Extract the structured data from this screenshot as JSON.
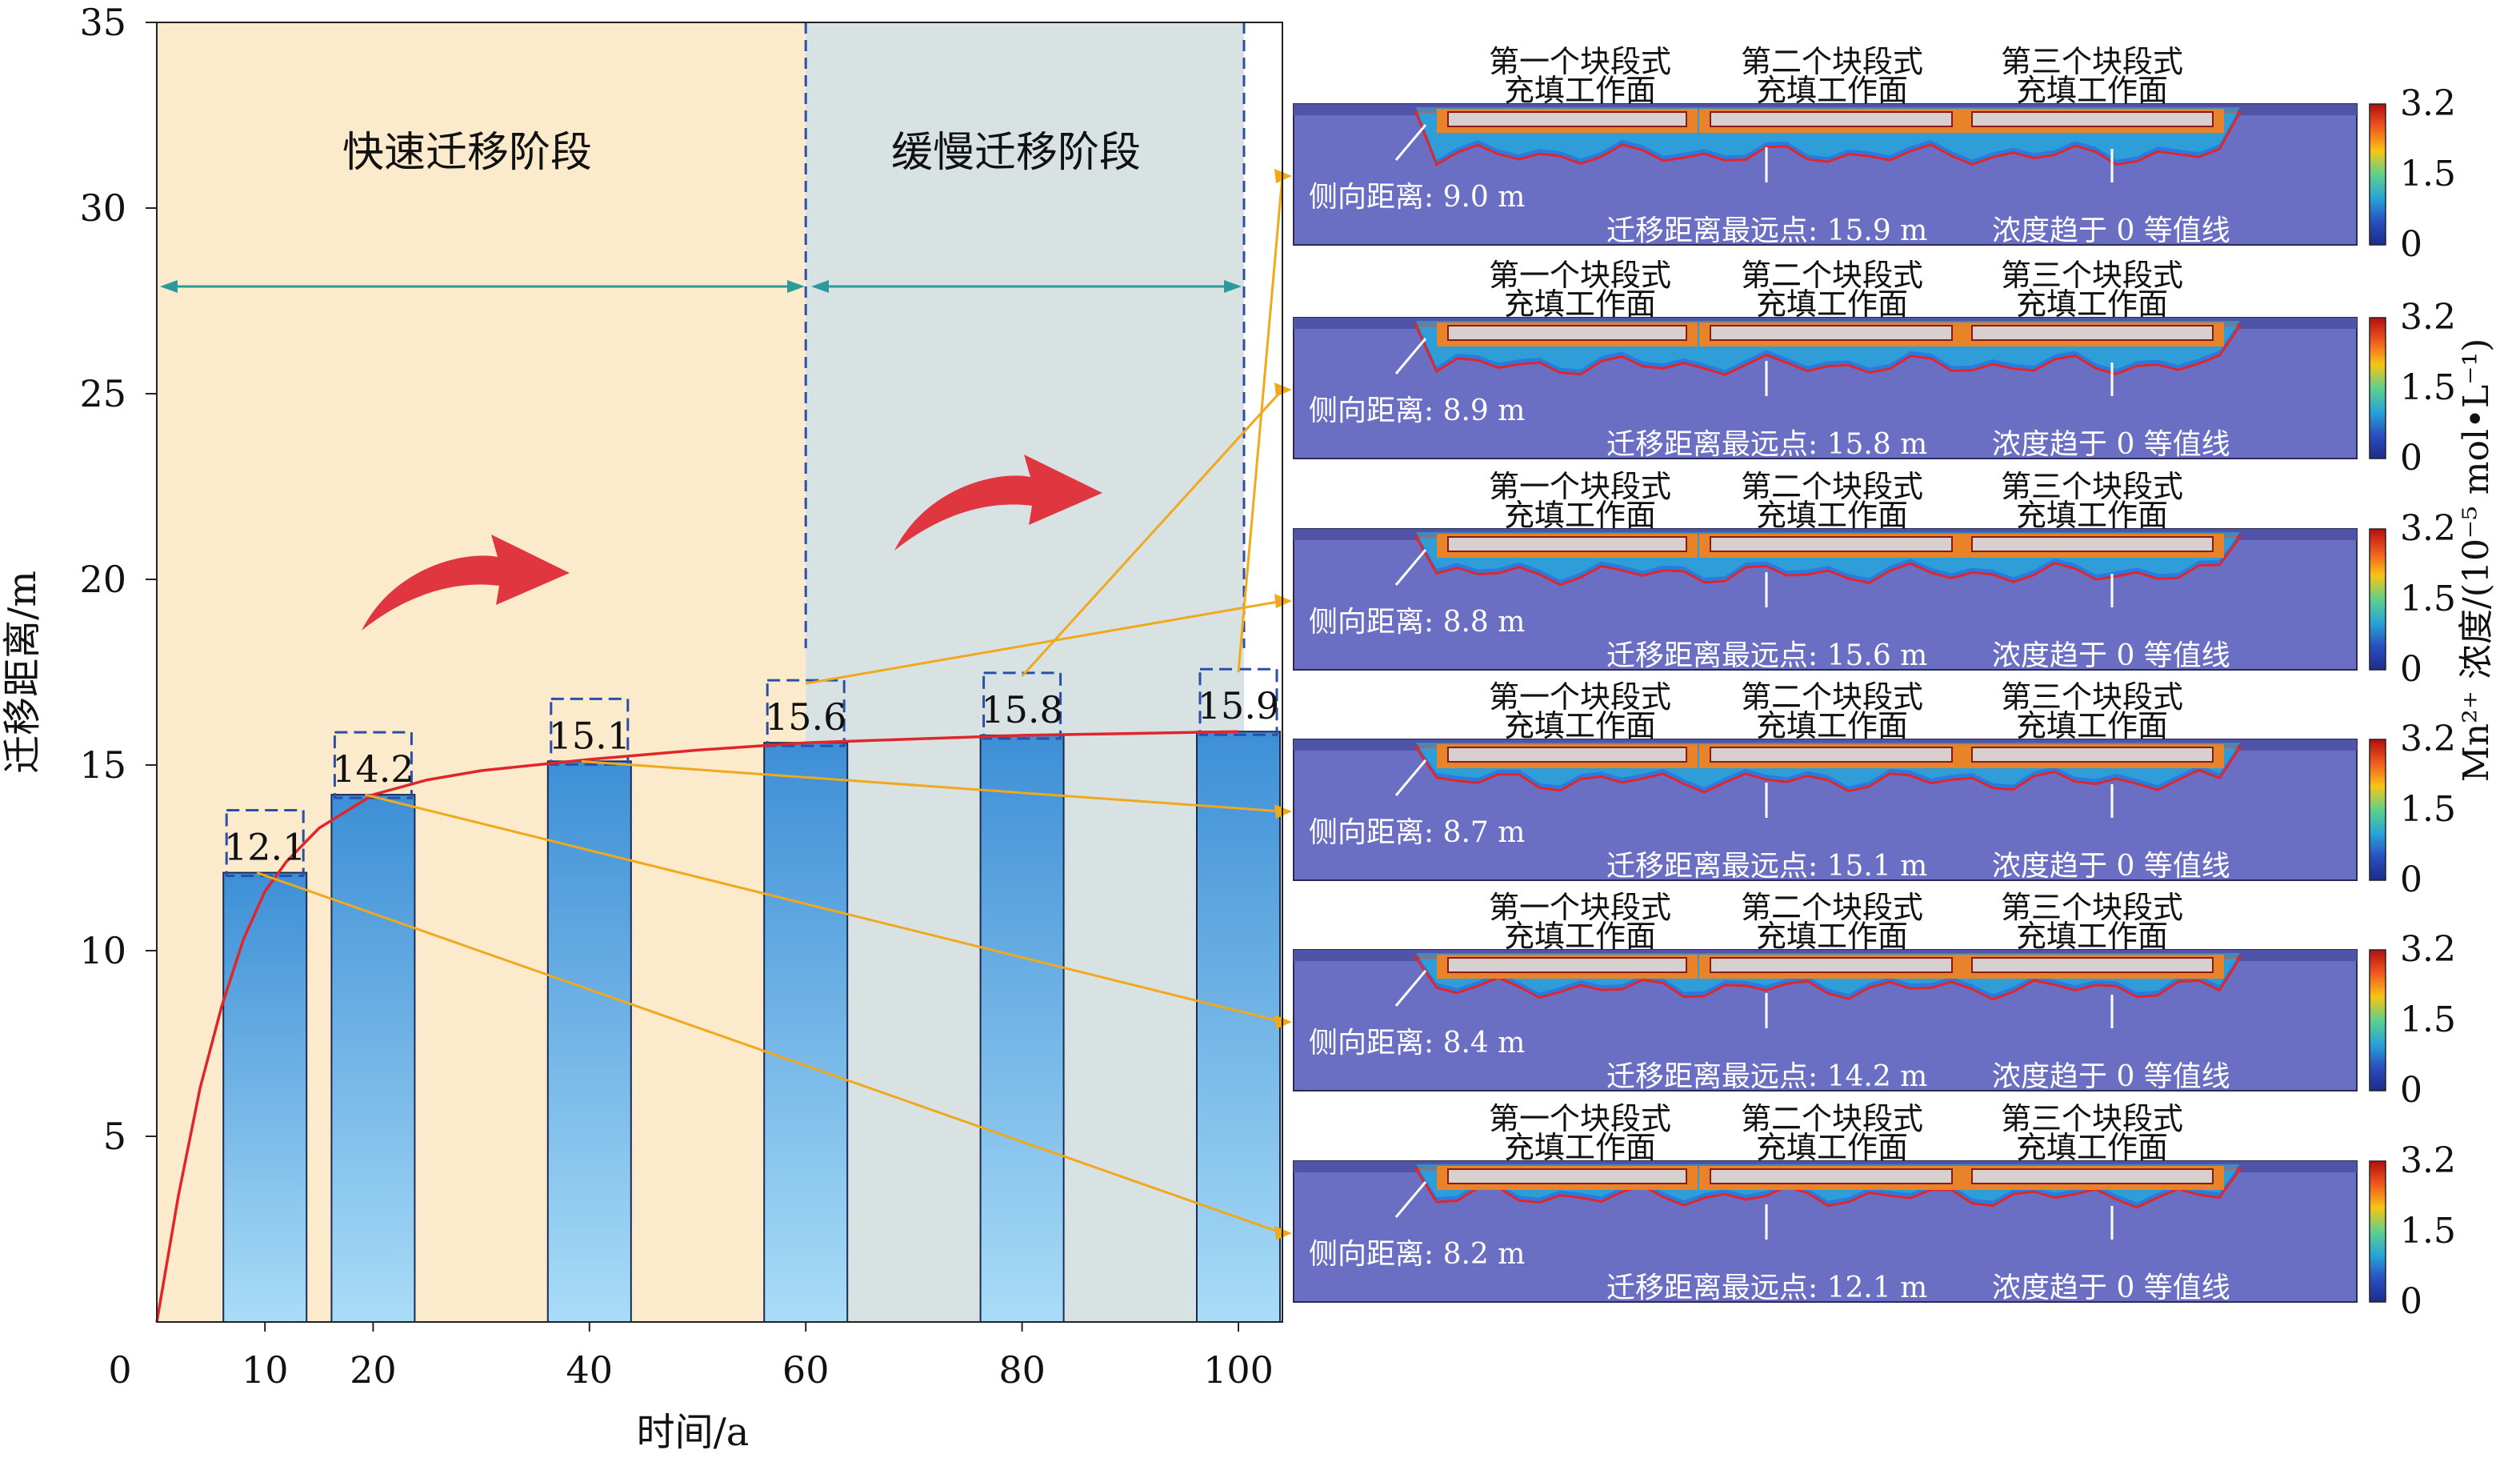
{
  "chart_data": {
    "type": "bar",
    "xlabel": "时间/a",
    "ylabel": "迁移距离/m",
    "xlim": [
      0,
      105
    ],
    "ylim": [
      0,
      35
    ],
    "x_ticks": [
      0,
      10,
      20,
      40,
      60,
      80,
      100
    ],
    "y_ticks": [
      5,
      10,
      15,
      20,
      25,
      30,
      35
    ],
    "categories": [
      "10",
      "20",
      "40",
      "60",
      "80",
      "100"
    ],
    "x": [
      10,
      20,
      40,
      60,
      80,
      100
    ],
    "values": [
      12.1,
      14.2,
      15.1,
      15.6,
      15.8,
      15.9
    ],
    "value_labels": [
      "12.1",
      "14.2",
      "15.1",
      "15.6",
      "15.8",
      "15.9"
    ],
    "trend_curve": {
      "color": "#e0262a",
      "x": [
        0,
        2,
        4,
        6,
        8,
        10,
        12,
        15,
        20,
        25,
        30,
        40,
        50,
        60,
        70,
        80,
        90,
        100
      ],
      "y": [
        0,
        3.4,
        6.3,
        8.5,
        10.3,
        11.6,
        12.4,
        13.3,
        14.2,
        14.6,
        14.85,
        15.15,
        15.4,
        15.6,
        15.7,
        15.8,
        15.85,
        15.9
      ]
    },
    "phases": [
      {
        "label": "快速迁移阶段",
        "x_range": [
          0,
          60
        ],
        "color": "#fbeacb"
      },
      {
        "label": "缓慢迁移阶段",
        "x_range": [
          60,
          100
        ],
        "color": "#d8e2e3"
      }
    ],
    "panels": [
      {
        "lateral": "侧向距离: 9.0 m",
        "farthest": "迁移距离最远点: 15.9 m",
        "from_time": 100
      },
      {
        "lateral": "侧向距离: 8.9 m",
        "farthest": "迁移距离最远点: 15.8 m",
        "from_time": 80
      },
      {
        "lateral": "侧向距离: 8.8 m",
        "farthest": "迁移距离最远点: 15.6 m",
        "from_time": 60
      },
      {
        "lateral": "侧向距离: 8.7 m",
        "farthest": "迁移距离最远点: 15.1 m",
        "from_time": 40
      },
      {
        "lateral": "侧向距离: 8.4 m",
        "farthest": "迁移距离最远点: 14.2 m",
        "from_time": 20
      },
      {
        "lateral": "侧向距离: 8.2 m",
        "farthest": "迁移距离最远点: 12.1 m",
        "from_time": 10
      }
    ],
    "panel_common": {
      "face1": [
        "第一个块段式",
        "充填工作面"
      ],
      "face2": [
        "第二个块段式",
        "充填工作面"
      ],
      "face3": [
        "第三个块段式",
        "充填工作面"
      ],
      "contour": "浓度趋于 0 等值线"
    },
    "colorbar": {
      "ticks": [
        "3.2",
        "1.5",
        "0"
      ],
      "label": "Mn²⁺ 浓度/(10⁻⁵ mol•L⁻¹)",
      "colors": [
        "#b30f0f",
        "#f05a1e",
        "#f7c515",
        "#5fd08c",
        "#27a5d8",
        "#2a4fc0",
        "#1d2c8a"
      ]
    },
    "colors": {
      "bar_top": "#3d8fd6",
      "bar_bottom": "#a9dcf7",
      "connector": "#f0a81c",
      "arrow": "#e0363f",
      "span_arrow": "#2a9a9a",
      "domain": "#6b6fc4"
    }
  }
}
